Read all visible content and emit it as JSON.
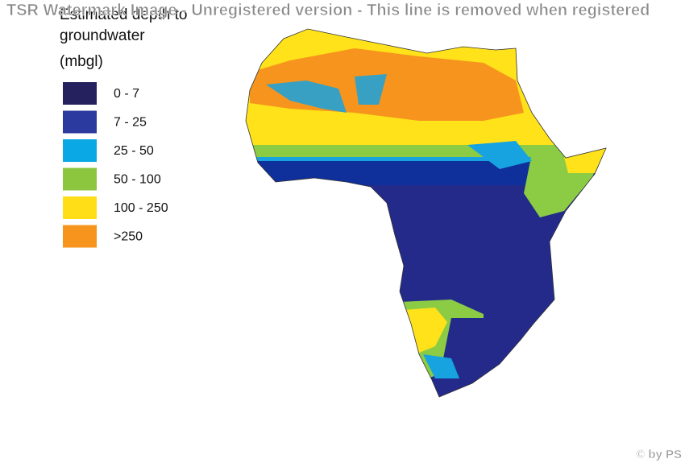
{
  "watermark": "TSR Watermark Image - Unregistered version - This line is removed when registered",
  "legend": {
    "title": [
      "Estimated depth to",
      "groundwater",
      "(mbgl)"
    ],
    "items": [
      {
        "label": "0 - 7",
        "color": "#25215e"
      },
      {
        "label": "7 - 25",
        "color": "#2b3a9e"
      },
      {
        "label": "25 - 50",
        "color": "#0ba8e6"
      },
      {
        "label": "50 - 100",
        "color": "#8cc63f"
      },
      {
        "label": "100 - 250",
        "color": "#ffdd17"
      },
      {
        "label": ">250",
        "color": "#f7941d"
      }
    ]
  },
  "credit": "© by PS"
}
